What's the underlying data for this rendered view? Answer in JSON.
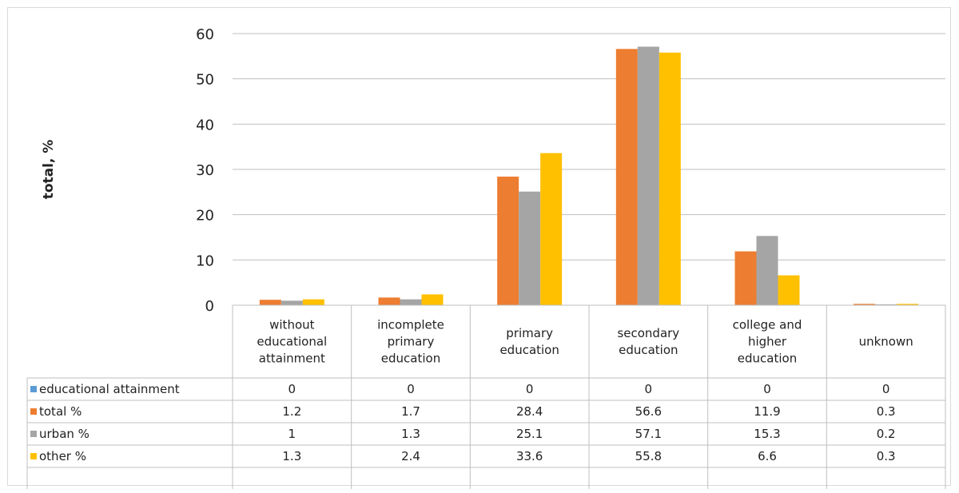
{
  "chart_data": {
    "type": "bar",
    "ylabel": "total, %",
    "ylim": [
      0,
      60
    ],
    "yticks": [
      0,
      10,
      20,
      30,
      40,
      50,
      60
    ],
    "grid": true,
    "legend_placement": "data-table",
    "categories": [
      [
        "without",
        "educational",
        "attainment"
      ],
      [
        "incomplete",
        "primary",
        "education"
      ],
      [
        "primary",
        "education"
      ],
      [
        "secondary",
        "education"
      ],
      [
        "college and",
        "higher",
        "education"
      ],
      [
        "unknown"
      ]
    ],
    "series": [
      {
        "name": "educational attainment",
        "color": "#5b9bd5",
        "values": [
          0,
          0,
          0,
          0,
          0,
          0
        ]
      },
      {
        "name": "total %",
        "color": "#ed7d31",
        "values": [
          1.2,
          1.7,
          28.4,
          56.6,
          11.9,
          0.3
        ]
      },
      {
        "name": "urban %",
        "color": "#a5a5a5",
        "values": [
          1,
          1.3,
          25.1,
          57.1,
          15.3,
          0.2
        ]
      },
      {
        "name": "other %",
        "color": "#ffc000",
        "values": [
          1.3,
          2.4,
          33.6,
          55.8,
          6.6,
          0.3
        ]
      }
    ]
  }
}
